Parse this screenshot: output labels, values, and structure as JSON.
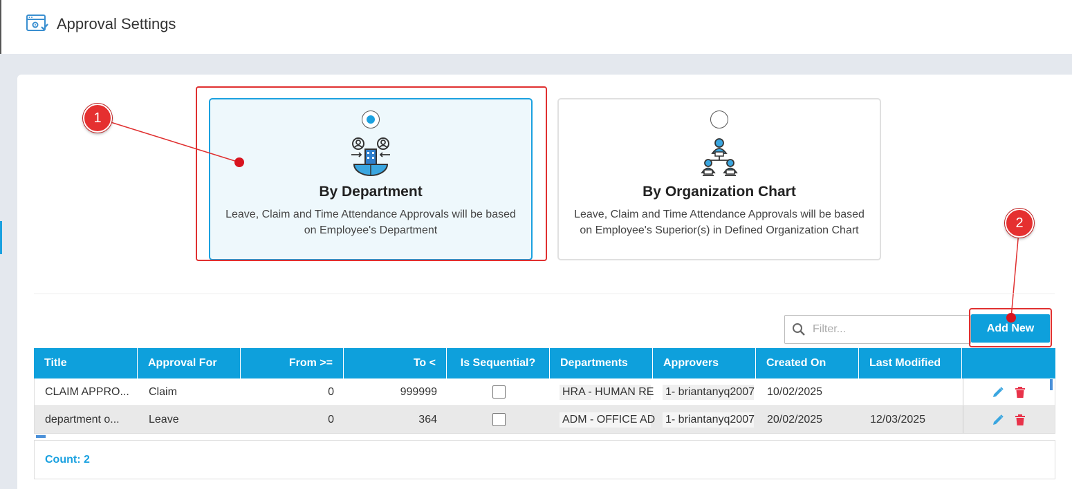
{
  "header": {
    "title": "Approval Settings",
    "icon": "settings-window-icon"
  },
  "options": [
    {
      "title": "By Department",
      "description": "Leave, Claim and Time Attendance Approvals will be based on Employee's Department",
      "selected": true,
      "icon": "department-icon"
    },
    {
      "title": "By Organization Chart",
      "description": "Leave, Claim and Time Attendance Approvals will be based on Employee's Superior(s) in Defined Organization Chart",
      "selected": false,
      "icon": "org-chart-icon"
    }
  ],
  "annotations": {
    "badge1": "1",
    "badge2": "2",
    "color": "#e53030"
  },
  "toolbar": {
    "filter_placeholder": "Filter...",
    "filter_value": "",
    "add_label": "Add New"
  },
  "table": {
    "columns": [
      "Title",
      "Approval For",
      "From >=",
      "To <",
      "Is Sequential?",
      "Departments",
      "Approvers",
      "Created On",
      "Last Modified",
      ""
    ],
    "rows": [
      {
        "title": "CLAIM APPRO...",
        "approval_for": "Claim",
        "from": "0",
        "to": "999999",
        "is_sequential": false,
        "departments": "HRA - HUMAN RE",
        "approvers": "1- briantanyq2007",
        "created_on": "10/02/2025",
        "last_modified": ""
      },
      {
        "title": "department o...",
        "approval_for": "Leave",
        "from": "0",
        "to": "364",
        "is_sequential": false,
        "departments": "ADM - OFFICE AD",
        "approvers": "1- briantanyq2007",
        "created_on": "20/02/2025",
        "last_modified": "12/03/2025"
      }
    ]
  },
  "footer": {
    "count": "Count: 2"
  },
  "colors": {
    "accent": "#0ea0dc",
    "delete": "#e8334a",
    "annotation": "#e53030"
  }
}
